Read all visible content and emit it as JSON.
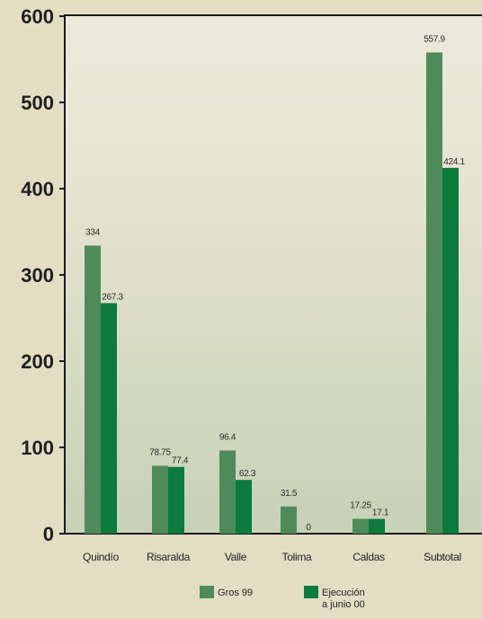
{
  "chart_data": {
    "type": "bar",
    "categories": [
      "Quindío",
      "Risaralda",
      "Valle",
      "Tolima",
      "Caldas",
      "Subtotal"
    ],
    "series": [
      {
        "name": "Gros 99",
        "values": [
          334,
          78.75,
          96.4,
          31.5,
          17.25,
          557.9
        ],
        "labels": [
          "334",
          "78.75",
          "96.4",
          "31.5",
          "17.25",
          "557.9"
        ],
        "color": "#4f8a5b"
      },
      {
        "name": "Ejecución a junio 00",
        "values": [
          267.3,
          77.4,
          62.3,
          0,
          17.1,
          424.1
        ],
        "labels": [
          "267.3",
          "77.4",
          "62.3",
          "0",
          "17.1",
          "424.1"
        ],
        "color": "#0b7a3c"
      }
    ],
    "yticks": [
      0,
      100,
      200,
      300,
      400,
      500,
      600
    ],
    "ylim": [
      0,
      600
    ],
    "grid": false,
    "legend_position": "bottom",
    "colors": {
      "background": "#e3ddc4",
      "plot_top": "#ece9da",
      "plot_bottom": "#c9d2b8"
    }
  }
}
